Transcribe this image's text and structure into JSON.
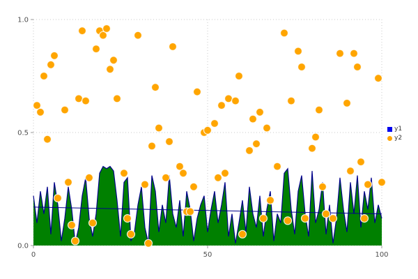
{
  "chart_data": {
    "type": "mixed",
    "title": "",
    "xlabel": "",
    "ylabel": "",
    "xlim": [
      0,
      100
    ],
    "ylim": [
      0,
      1
    ],
    "grid": {
      "style": "dotted",
      "color": "#c9c9c9",
      "on": true
    },
    "x_ticks": [
      {
        "value": 0,
        "label": "0"
      },
      {
        "value": 50,
        "label": "50"
      },
      {
        "value": 100,
        "label": "100"
      }
    ],
    "y_ticks": [
      {
        "value": 0,
        "label": "0.0"
      },
      {
        "value": 0.5,
        "label": "0.5"
      },
      {
        "value": 1,
        "label": "1.0"
      }
    ],
    "legend": {
      "position": "right",
      "entries": [
        {
          "label": "y1",
          "marker": "square",
          "color": "#0000ee"
        },
        {
          "label": "y2",
          "marker": "circle",
          "color": "#ffa500"
        }
      ]
    },
    "series": [
      {
        "name": "y1",
        "type": "area",
        "x_start": 0,
        "x_step": 1,
        "fill_color": "#008000",
        "line_color": "#00008b",
        "values": [
          0.22,
          0.1,
          0.24,
          0.14,
          0.26,
          0.05,
          0.28,
          0.18,
          0.02,
          0.12,
          0.26,
          0.16,
          0.01,
          0.08,
          0.22,
          0.3,
          0.12,
          0.04,
          0.14,
          0.32,
          0.35,
          0.34,
          0.35,
          0.33,
          0.2,
          0.04,
          0.28,
          0.3,
          0.02,
          0.06,
          0.18,
          0.26,
          0.08,
          0.01,
          0.31,
          0.24,
          0.06,
          0.18,
          0.1,
          0.31,
          0.14,
          0.08,
          0.2,
          0.04,
          0.24,
          0.16,
          0.02,
          0.12,
          0.18,
          0.22,
          0.06,
          0.16,
          0.24,
          0.1,
          0.18,
          0.28,
          0.04,
          0.14,
          0.01,
          0.1,
          0.2,
          0.06,
          0.26,
          0.14,
          0.08,
          0.22,
          0.04,
          0.16,
          0.24,
          0.02,
          0.14,
          0.1,
          0.32,
          0.34,
          0.16,
          0.05,
          0.24,
          0.31,
          0.14,
          0.04,
          0.33,
          0.1,
          0.16,
          0.28,
          0.05,
          0.18,
          0.01,
          0.12,
          0.3,
          0.16,
          0.06,
          0.28,
          0.14,
          0.31,
          0.08,
          0.24,
          0.16,
          0.3,
          0.1,
          0.18,
          0.12
        ]
      },
      {
        "name": "y2",
        "type": "scatter",
        "color": "#ffa500",
        "edge_color": "#ffffff",
        "points": [
          [
            1,
            0.62
          ],
          [
            2,
            0.59
          ],
          [
            3,
            0.75
          ],
          [
            4,
            0.47
          ],
          [
            5,
            0.8
          ],
          [
            6,
            0.84
          ],
          [
            7,
            0.21
          ],
          [
            9,
            0.6
          ],
          [
            10,
            0.28
          ],
          [
            11,
            0.09
          ],
          [
            12,
            0.02
          ],
          [
            13,
            0.65
          ],
          [
            14,
            0.95
          ],
          [
            15,
            0.64
          ],
          [
            16,
            0.3
          ],
          [
            17,
            0.1
          ],
          [
            18,
            0.87
          ],
          [
            19,
            0.95
          ],
          [
            20,
            0.93
          ],
          [
            21,
            0.96
          ],
          [
            22,
            0.78
          ],
          [
            23,
            0.82
          ],
          [
            24,
            0.65
          ],
          [
            26,
            0.32
          ],
          [
            27,
            0.12
          ],
          [
            28,
            0.05
          ],
          [
            30,
            0.93
          ],
          [
            32,
            0.27
          ],
          [
            33,
            0.01
          ],
          [
            34,
            0.44
          ],
          [
            35,
            0.7
          ],
          [
            36,
            0.52
          ],
          [
            38,
            0.3
          ],
          [
            39,
            0.46
          ],
          [
            40,
            0.88
          ],
          [
            42,
            0.35
          ],
          [
            43,
            0.32
          ],
          [
            44,
            0.15
          ],
          [
            45,
            0.15
          ],
          [
            46,
            0.26
          ],
          [
            47,
            0.68
          ],
          [
            49,
            0.5
          ],
          [
            50,
            0.51
          ],
          [
            52,
            0.54
          ],
          [
            53,
            0.3
          ],
          [
            54,
            0.62
          ],
          [
            55,
            0.32
          ],
          [
            56,
            0.65
          ],
          [
            58,
            0.64
          ],
          [
            59,
            0.75
          ],
          [
            60,
            0.05
          ],
          [
            62,
            0.42
          ],
          [
            63,
            0.56
          ],
          [
            64,
            0.45
          ],
          [
            65,
            0.59
          ],
          [
            66,
            0.12
          ],
          [
            67,
            0.52
          ],
          [
            68,
            0.2
          ],
          [
            70,
            0.35
          ],
          [
            72,
            0.94
          ],
          [
            73,
            0.11
          ],
          [
            74,
            0.64
          ],
          [
            76,
            0.86
          ],
          [
            77,
            0.79
          ],
          [
            78,
            0.12
          ],
          [
            80,
            0.43
          ],
          [
            81,
            0.48
          ],
          [
            82,
            0.6
          ],
          [
            83,
            0.26
          ],
          [
            84,
            0.14
          ],
          [
            86,
            0.12
          ],
          [
            88,
            0.85
          ],
          [
            90,
            0.63
          ],
          [
            91,
            0.33
          ],
          [
            92,
            0.85
          ],
          [
            93,
            0.79
          ],
          [
            94,
            0.37
          ],
          [
            95,
            0.12
          ],
          [
            96,
            0.27
          ],
          [
            99,
            0.74
          ],
          [
            100,
            0.28
          ]
        ]
      }
    ],
    "overlay_line": {
      "series": "y1",
      "start": [
        0,
        0.17
      ],
      "end": [
        100,
        0.14
      ],
      "color": "#00008b"
    }
  }
}
